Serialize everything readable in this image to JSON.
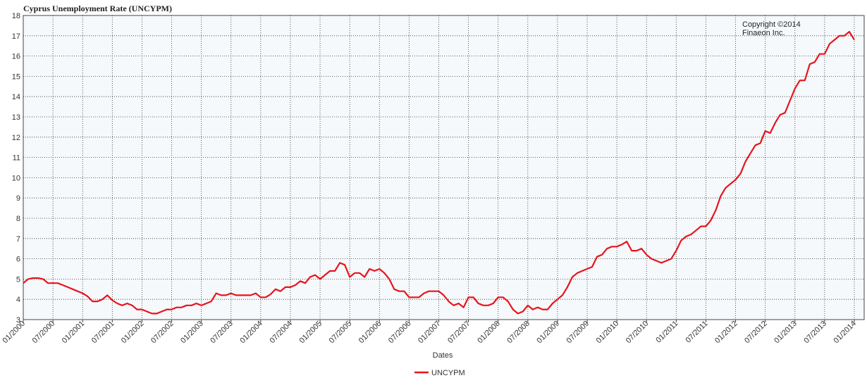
{
  "chart_data": {
    "type": "line",
    "title": "Cyprus Unemployment Rate (UNCYPM)",
    "xlabel": "Dates",
    "ylabel": "",
    "ylim": [
      3,
      18
    ],
    "y_ticks": [
      3,
      4,
      5,
      6,
      7,
      8,
      9,
      10,
      11,
      12,
      13,
      14,
      15,
      16,
      17,
      18
    ],
    "x_tick_labels": [
      "01/2000",
      "07/2000",
      "01/2001",
      "07/2001",
      "01/2002",
      "07/2002",
      "01/2003",
      "07/2003",
      "01/2004",
      "07/2004",
      "01/2005",
      "07/2005",
      "01/2006",
      "07/2006",
      "01/2007",
      "07/2007",
      "01/2008",
      "07/2008",
      "01/2009",
      "07/2009",
      "01/2010",
      "07/2010",
      "01/2011",
      "07/2011",
      "01/2012",
      "07/2012",
      "01/2013",
      "07/2013",
      "01/2014"
    ],
    "x_start": "01/2000",
    "x_end": "03/2014",
    "grid": true,
    "legend": "bottom-center",
    "annotation": [
      "Copyright ©2014",
      "Finaeon Inc."
    ],
    "series": [
      {
        "name": "UNCYPM",
        "color": "#e8141c",
        "values": [
          4.8,
          5.0,
          5.05,
          5.05,
          5.0,
          4.8,
          4.8,
          4.8,
          4.7,
          4.6,
          4.5,
          4.4,
          4.3,
          4.15,
          3.9,
          3.9,
          4.0,
          4.2,
          3.95,
          3.8,
          3.7,
          3.8,
          3.7,
          3.5,
          3.5,
          3.4,
          3.3,
          3.3,
          3.4,
          3.5,
          3.5,
          3.6,
          3.6,
          3.7,
          3.7,
          3.8,
          3.7,
          3.8,
          3.9,
          4.3,
          4.2,
          4.2,
          4.3,
          4.2,
          4.2,
          4.2,
          4.2,
          4.3,
          4.1,
          4.1,
          4.25,
          4.5,
          4.4,
          4.6,
          4.6,
          4.7,
          4.9,
          4.8,
          5.1,
          5.2,
          5.0,
          5.2,
          5.4,
          5.4,
          5.8,
          5.7,
          5.1,
          5.3,
          5.3,
          5.1,
          5.5,
          5.4,
          5.5,
          5.3,
          5.0,
          4.5,
          4.4,
          4.4,
          4.1,
          4.1,
          4.1,
          4.3,
          4.4,
          4.4,
          4.4,
          4.2,
          3.9,
          3.7,
          3.8,
          3.6,
          4.1,
          4.1,
          3.8,
          3.7,
          3.7,
          3.8,
          4.1,
          4.1,
          3.9,
          3.5,
          3.3,
          3.4,
          3.7,
          3.5,
          3.6,
          3.5,
          3.5,
          3.8,
          4.0,
          4.2,
          4.6,
          5.1,
          5.3,
          5.4,
          5.5,
          5.6,
          6.1,
          6.2,
          6.5,
          6.6,
          6.6,
          6.7,
          6.85,
          6.4,
          6.4,
          6.5,
          6.2,
          6.0,
          5.9,
          5.8,
          5.9,
          6.0,
          6.4,
          6.9,
          7.1,
          7.2,
          7.4,
          7.6,
          7.6,
          7.9,
          8.4,
          9.1,
          9.5,
          9.7,
          9.9,
          10.2,
          10.8,
          11.2,
          11.6,
          11.7,
          12.3,
          12.2,
          12.7,
          13.1,
          13.2,
          13.8,
          14.4,
          14.8,
          14.8,
          15.6,
          15.7,
          16.1,
          16.1,
          16.6,
          16.8,
          17.0,
          17.0,
          17.2,
          16.8
        ]
      }
    ]
  }
}
